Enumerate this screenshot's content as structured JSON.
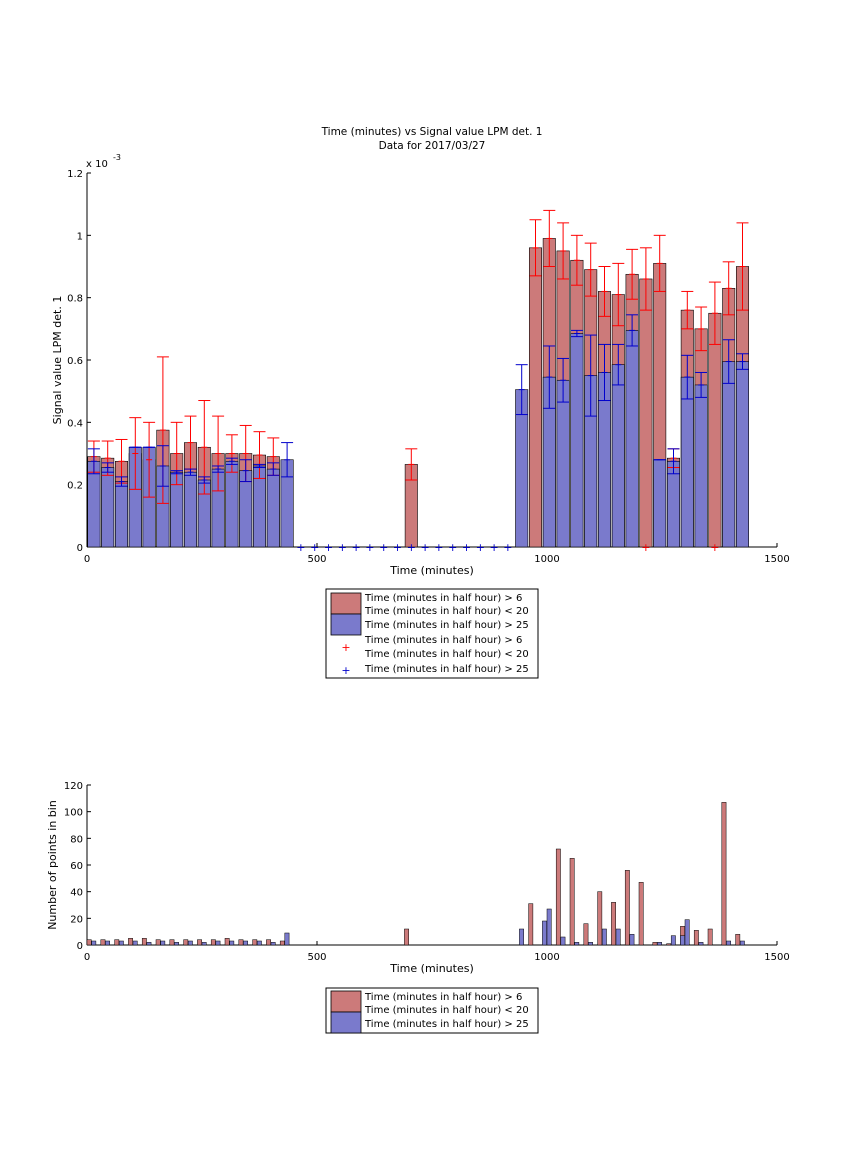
{
  "colors": {
    "group1_bar": "#cc7a7a",
    "group2_bar": "#7a7acc",
    "group1_marker": "#ff0000",
    "group2_marker": "#0000cc",
    "axes": "#000000"
  },
  "chart_data": [
    {
      "type": "bar",
      "title": "Time (minutes) vs Signal value LPM det. 1",
      "subtitle": "Data for 2017/03/27",
      "xlabel": "Time (minutes)",
      "ylabel": "Signal value LPM det. 1",
      "yexponent_label": "x 10",
      "yexponent_power": "-3",
      "xlim": [
        0,
        1500
      ],
      "ylim": [
        0,
        1.2
      ],
      "xticks": [
        "0",
        "500",
        "1000",
        "1500"
      ],
      "yticks": [
        "0",
        "0.2",
        "0.4",
        "0.6",
        "0.8",
        "1",
        "1.2"
      ],
      "legend_placement": "below",
      "legend": [
        {
          "name": "Time (minutes in half hour) > 6",
          "name2": "Time (minutes in half hour) < 20",
          "kind": "bar",
          "group": 1
        },
        {
          "name": "Time (minutes in half hour) > 25",
          "kind": "bar",
          "group": 2
        },
        {
          "name": "Time (minutes in half hour) > 6",
          "name2": "Time (minutes in half hour) < 20",
          "kind": "marker",
          "group": 1
        },
        {
          "name": "Time (minutes in half hour) > 25",
          "kind": "marker",
          "group": 2
        }
      ],
      "series": [
        {
          "group": 1,
          "points": [
            {
              "x": 15,
              "y": 0.29,
              "err": 0.05
            },
            {
              "x": 45,
              "y": 0.285,
              "err": 0.055
            },
            {
              "x": 75,
              "y": 0.275,
              "err": 0.07
            },
            {
              "x": 105,
              "y": 0.3,
              "err": 0.115
            },
            {
              "x": 135,
              "y": 0.28,
              "err": 0.12
            },
            {
              "x": 165,
              "y": 0.375,
              "err": 0.235
            },
            {
              "x": 195,
              "y": 0.3,
              "err": 0.1
            },
            {
              "x": 225,
              "y": 0.335,
              "err": 0.085
            },
            {
              "x": 255,
              "y": 0.32,
              "err": 0.15
            },
            {
              "x": 285,
              "y": 0.3,
              "err": 0.12
            },
            {
              "x": 315,
              "y": 0.3,
              "err": 0.06
            },
            {
              "x": 345,
              "y": 0.3,
              "err": 0.09
            },
            {
              "x": 375,
              "y": 0.295,
              "err": 0.075
            },
            {
              "x": 405,
              "y": 0.29,
              "err": 0.06
            },
            {
              "x": 705,
              "y": 0.265,
              "err": 0.05
            },
            {
              "x": 975,
              "y": 0.96,
              "err": 0.09
            },
            {
              "x": 1005,
              "y": 0.99,
              "err": 0.09
            },
            {
              "x": 1035,
              "y": 0.95,
              "err": 0.09
            },
            {
              "x": 1065,
              "y": 0.92,
              "err": 0.08
            },
            {
              "x": 1095,
              "y": 0.89,
              "err": 0.085
            },
            {
              "x": 1125,
              "y": 0.82,
              "err": 0.08
            },
            {
              "x": 1155,
              "y": 0.81,
              "err": 0.1
            },
            {
              "x": 1185,
              "y": 0.875,
              "err": 0.08
            },
            {
              "x": 1215,
              "y": 0.86,
              "err": 0.1
            },
            {
              "x": 1245,
              "y": 0.91,
              "err": 0.09
            },
            {
              "x": 1275,
              "y": 0.285,
              "err": 0.03
            },
            {
              "x": 1305,
              "y": 0.76,
              "err": 0.06
            },
            {
              "x": 1335,
              "y": 0.7,
              "err": 0.07
            },
            {
              "x": 1365,
              "y": 0.75,
              "err": 0.1
            },
            {
              "x": 1395,
              "y": 0.83,
              "err": 0.085
            },
            {
              "x": 1425,
              "y": 0.9,
              "err": 0.14
            }
          ],
          "zero_markers_x": [
            1215,
            1365
          ]
        },
        {
          "group": 2,
          "points": [
            {
              "x": 15,
              "y": 0.275,
              "err": 0.04
            },
            {
              "x": 45,
              "y": 0.255,
              "err": 0.015
            },
            {
              "x": 75,
              "y": 0.21,
              "err": 0.015
            },
            {
              "x": 105,
              "y": 0.32,
              "err": 0.0
            },
            {
              "x": 135,
              "y": 0.32,
              "err": 0.0
            },
            {
              "x": 165,
              "y": 0.26,
              "err": 0.065
            },
            {
              "x": 195,
              "y": 0.24,
              "err": 0.005
            },
            {
              "x": 225,
              "y": 0.24,
              "err": 0.01
            },
            {
              "x": 255,
              "y": 0.215,
              "err": 0.01
            },
            {
              "x": 285,
              "y": 0.25,
              "err": 0.01
            },
            {
              "x": 315,
              "y": 0.275,
              "err": 0.01
            },
            {
              "x": 345,
              "y": 0.245,
              "err": 0.035
            },
            {
              "x": 375,
              "y": 0.26,
              "err": 0.005
            },
            {
              "x": 405,
              "y": 0.25,
              "err": 0.02
            },
            {
              "x": 435,
              "y": 0.28,
              "err": 0.055
            },
            {
              "x": 945,
              "y": 0.505,
              "err": 0.08
            },
            {
              "x": 1005,
              "y": 0.545,
              "err": 0.1
            },
            {
              "x": 1035,
              "y": 0.535,
              "err": 0.07
            },
            {
              "x": 1065,
              "y": 0.685,
              "err": 0.01
            },
            {
              "x": 1095,
              "y": 0.55,
              "err": 0.13
            },
            {
              "x": 1125,
              "y": 0.56,
              "err": 0.09
            },
            {
              "x": 1155,
              "y": 0.585,
              "err": 0.065
            },
            {
              "x": 1185,
              "y": 0.695,
              "err": 0.05
            },
            {
              "x": 1245,
              "y": 0.28,
              "err": 0.0
            },
            {
              "x": 1275,
              "y": 0.275,
              "err": 0.04
            },
            {
              "x": 1305,
              "y": 0.545,
              "err": 0.07
            },
            {
              "x": 1335,
              "y": 0.52,
              "err": 0.04
            },
            {
              "x": 1395,
              "y": 0.595,
              "err": 0.07
            },
            {
              "x": 1425,
              "y": 0.595,
              "err": 0.025
            }
          ],
          "zero_markers_x": [
            465,
            495,
            525,
            555,
            585,
            615,
            645,
            675,
            705,
            735,
            765,
            795,
            825,
            855,
            885,
            915
          ]
        }
      ]
    },
    {
      "type": "bar",
      "xlabel": "Time (minutes)",
      "ylabel": "Number of points in bin",
      "xlim": [
        0,
        1500
      ],
      "ylim": [
        0,
        120
      ],
      "xticks": [
        "0",
        "500",
        "1000",
        "1500"
      ],
      "yticks": [
        "0",
        "20",
        "40",
        "60",
        "80",
        "100",
        "120"
      ],
      "legend_placement": "below",
      "legend": [
        {
          "name": "Time (minutes in half hour) > 6",
          "name2": "Time (minutes in half hour) < 20",
          "kind": "bar",
          "group": 1
        },
        {
          "name": "Time (minutes in half hour) > 25",
          "kind": "bar",
          "group": 2
        }
      ],
      "series": [
        {
          "group": 1,
          "points": [
            {
              "x": 0,
              "y": 4
            },
            {
              "x": 30,
              "y": 4
            },
            {
              "x": 60,
              "y": 4
            },
            {
              "x": 90,
              "y": 5
            },
            {
              "x": 120,
              "y": 5
            },
            {
              "x": 150,
              "y": 4
            },
            {
              "x": 180,
              "y": 4
            },
            {
              "x": 210,
              "y": 4
            },
            {
              "x": 240,
              "y": 4
            },
            {
              "x": 270,
              "y": 4
            },
            {
              "x": 300,
              "y": 5
            },
            {
              "x": 330,
              "y": 4
            },
            {
              "x": 360,
              "y": 4
            },
            {
              "x": 390,
              "y": 4
            },
            {
              "x": 420,
              "y": 3
            },
            {
              "x": 690,
              "y": 12
            },
            {
              "x": 960,
              "y": 31
            },
            {
              "x": 1020,
              "y": 72
            },
            {
              "x": 1050,
              "y": 65
            },
            {
              "x": 1080,
              "y": 16
            },
            {
              "x": 1110,
              "y": 40
            },
            {
              "x": 1140,
              "y": 32
            },
            {
              "x": 1170,
              "y": 56
            },
            {
              "x": 1200,
              "y": 47
            },
            {
              "x": 1230,
              "y": 2
            },
            {
              "x": 1260,
              "y": 1
            },
            {
              "x": 1290,
              "y": 14
            },
            {
              "x": 1320,
              "y": 11
            },
            {
              "x": 1350,
              "y": 12
            },
            {
              "x": 1380,
              "y": 107
            },
            {
              "x": 1410,
              "y": 8
            }
          ]
        },
        {
          "group": 2,
          "points": [
            {
              "x": 10,
              "y": 3
            },
            {
              "x": 40,
              "y": 3
            },
            {
              "x": 70,
              "y": 3
            },
            {
              "x": 100,
              "y": 3
            },
            {
              "x": 130,
              "y": 2
            },
            {
              "x": 160,
              "y": 3
            },
            {
              "x": 190,
              "y": 2
            },
            {
              "x": 220,
              "y": 3
            },
            {
              "x": 250,
              "y": 2
            },
            {
              "x": 280,
              "y": 3
            },
            {
              "x": 310,
              "y": 3
            },
            {
              "x": 340,
              "y": 3
            },
            {
              "x": 370,
              "y": 3
            },
            {
              "x": 400,
              "y": 2
            },
            {
              "x": 430,
              "y": 9
            },
            {
              "x": 940,
              "y": 12
            },
            {
              "x": 1000,
              "y": 27
            },
            {
              "x": 1030,
              "y": 6
            },
            {
              "x": 1060,
              "y": 2
            },
            {
              "x": 1090,
              "y": 2
            },
            {
              "x": 1120,
              "y": 12
            },
            {
              "x": 1150,
              "y": 12
            },
            {
              "x": 1180,
              "y": 8
            },
            {
              "x": 1240,
              "y": 2
            },
            {
              "x": 1270,
              "y": 7
            },
            {
              "x": 1300,
              "y": 19
            },
            {
              "x": 1330,
              "y": 2
            },
            {
              "x": 1390,
              "y": 3
            },
            {
              "x": 1420,
              "y": 3
            }
          ],
          "extra_points": [
            {
              "x": 990,
              "y": 18
            },
            {
              "x": 1290,
              "y": 7
            }
          ]
        }
      ]
    }
  ]
}
